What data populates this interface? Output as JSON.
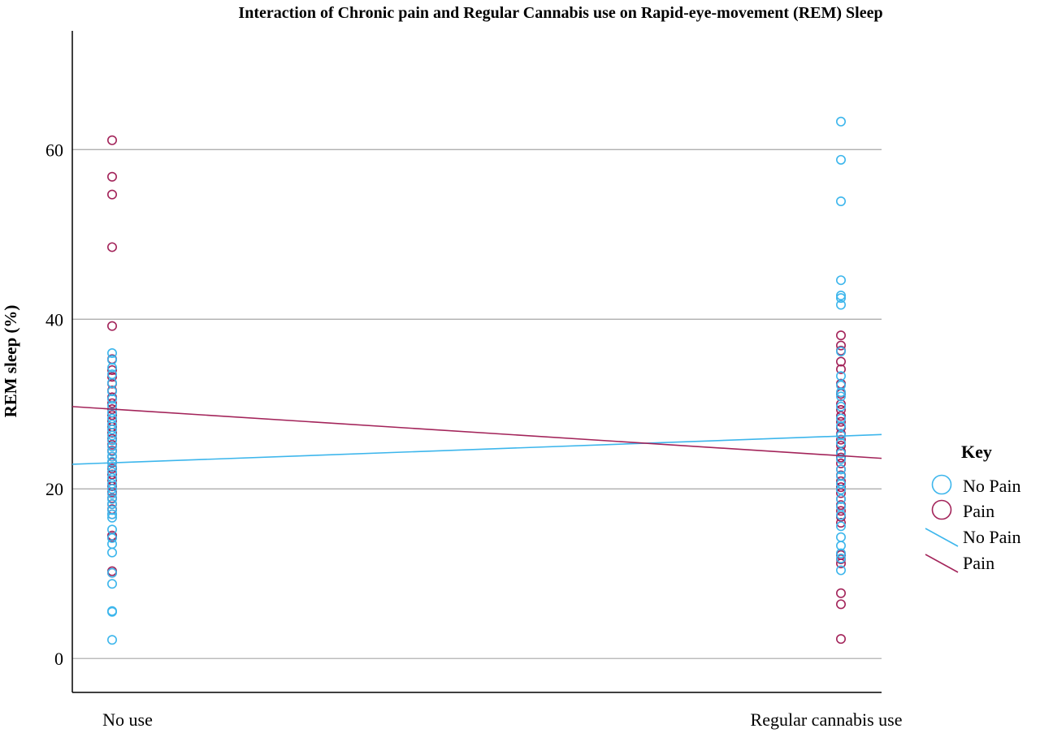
{
  "chart_data": {
    "type": "scatter",
    "title": "Interaction of Chronic pain and Regular Cannabis use on Rapid-eye-movement (REM) Sleep",
    "xlabel": "",
    "ylabel": "REM sleep (%)",
    "categories": [
      "No use",
      "Regular cannabis use"
    ],
    "yticks": [
      0,
      20,
      40,
      60
    ],
    "ylim": [
      -4,
      74
    ],
    "grid": true,
    "legend": {
      "title": "Key",
      "placement": "right",
      "entries": [
        {
          "label": "No Pain",
          "kind": "marker",
          "color": "#3db6ec"
        },
        {
          "label": "Pain",
          "kind": "marker",
          "color": "#a3245a"
        },
        {
          "label": "No Pain",
          "kind": "line",
          "color": "#3db6ec"
        },
        {
          "label": "Pain",
          "kind": "line",
          "color": "#a3245a"
        }
      ]
    },
    "series": [
      {
        "name": "No Pain",
        "color": "#3db6ec",
        "points": {
          "No use": [
            2.2,
            5.5,
            5.6,
            8.8,
            10.1,
            12.5,
            13.5,
            14.2,
            15.2,
            16.6,
            17.0,
            17.5,
            18.2,
            18.8,
            19.4,
            20.0,
            20.6,
            21.3,
            22.0,
            22.6,
            23.2,
            23.8,
            24.4,
            25.0,
            25.7,
            26.3,
            27.0,
            27.6,
            28.3,
            29.0,
            29.8,
            30.6,
            31.5,
            32.5,
            33.5,
            34.3,
            35.2,
            36.0
          ],
          "Regular cannabis use": [
            63.3,
            58.8,
            53.9,
            44.6,
            42.8,
            42.5,
            41.7,
            36.2,
            33.3,
            32.2,
            31.4,
            30.9,
            29.7,
            28.3,
            27.4,
            26.3,
            25.4,
            24.2,
            23.5,
            22.3,
            21.5,
            20.6,
            19.9,
            18.8,
            17.9,
            16.9,
            15.6,
            14.3,
            13.3,
            12.4,
            11.8,
            10.4
          ]
        }
      },
      {
        "name": "Pain",
        "color": "#a3245a",
        "points": {
          "No use": [
            61.1,
            56.8,
            54.7,
            48.5,
            39.2,
            35.3,
            34.0,
            33.2,
            32.4,
            31.6,
            30.8,
            30.1,
            29.4,
            28.7,
            28.0,
            27.3,
            26.6,
            25.9,
            25.2,
            24.5,
            23.8,
            23.1,
            22.4,
            21.7,
            21.0,
            20.3,
            19.6,
            18.9,
            18.2,
            17.6,
            17.0,
            14.5,
            14.3,
            10.3,
            10.1
          ],
          "Regular cannabis use": [
            38.1,
            36.9,
            36.3,
            35.0,
            34.1,
            32.4,
            31.2,
            30.0,
            29.3,
            28.6,
            27.9,
            27.2,
            26.5,
            25.8,
            25.1,
            24.4,
            23.7,
            23.0,
            22.3,
            21.6,
            20.9,
            20.2,
            19.5,
            18.8,
            18.1,
            17.4,
            16.7,
            16.0,
            12.2,
            11.7,
            11.2,
            7.7,
            6.4,
            2.3
          ]
        }
      }
    ],
    "fit_lines": [
      {
        "name": "No Pain",
        "color": "#3db6ec",
        "y_start": 22.9,
        "y_end": 26.4
      },
      {
        "name": "Pain",
        "color": "#a3245a",
        "y_start": 29.7,
        "y_end": 23.6
      }
    ]
  }
}
